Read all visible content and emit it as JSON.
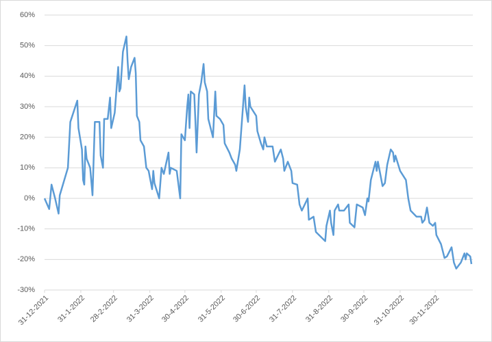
{
  "chart_data": {
    "type": "line",
    "x": [
      "31-12-2021",
      "4-1-2022",
      "6-1-2022",
      "9-1-2022",
      "12-1-2022",
      "13-1-2022",
      "20-1-2022",
      "22-1-2022",
      "28-1-2022",
      "29-1-2022",
      "1-2-2022",
      "2-2-2022",
      "3-2-2022",
      "4-2-2022",
      "5-2-2022",
      "8-2-2022",
      "10-2-2022",
      "12-2-2022",
      "16-2-2022",
      "17-2-2022",
      "19-2-2022",
      "20-2-2022",
      "23-2-2022",
      "25-2-2022",
      "26-2-2022",
      "1-3-2022",
      "4-3-2022",
      "5-3-2022",
      "6-3-2022",
      "8-3-2022",
      "11-3-2022",
      "12-3-2022",
      "13-3-2022",
      "15-3-2022",
      "18-3-2022",
      "19-3-2022",
      "20-3-2022",
      "22-3-2022",
      "23-3-2022",
      "26-3-2022",
      "28-3-2022",
      "30-3-2022",
      "2-4-2022",
      "3-4-2022",
      "4-4-2022",
      "8-4-2022",
      "10-4-2022",
      "12-4-2022",
      "16-4-2022",
      "17-4-2022",
      "18-4-2022",
      "23-4-2022",
      "26-4-2022",
      "27-4-2022",
      "30-4-2022",
      "2-5-2022",
      "3-5-2022",
      "4-5-2022",
      "5-5-2022",
      "8-5-2022",
      "9-5-2022",
      "10-5-2022",
      "12-5-2022",
      "14-5-2022",
      "16-5-2022",
      "17-5-2022",
      "19-5-2022",
      "20-5-2022",
      "24-5-2022",
      "26-5-2022",
      "27-5-2022",
      "30-5-2022",
      "2-6-2022",
      "3-6-2022",
      "7-6-2022",
      "9-6-2022",
      "12-6-2022",
      "13-6-2022",
      "16-6-2022",
      "20-6-2022",
      "21-6-2022",
      "23-6-2022",
      "24-6-2022",
      "25-6-2022",
      "30-6-2022",
      "1-7-2022",
      "4-7-2022",
      "6-7-2022",
      "7-7-2022",
      "9-7-2022",
      "14-7-2022",
      "16-7-2022",
      "21-7-2022",
      "23-7-2022",
      "24-7-2022",
      "27-7-2022",
      "30-7-2022",
      "31-7-2022",
      "4-8-2022",
      "6-8-2022",
      "8-8-2022",
      "13-8-2022",
      "14-8-2022",
      "18-8-2022",
      "20-8-2022",
      "28-8-2022",
      "29-8-2022",
      "1-9-2022",
      "2-9-2022",
      "4-9-2022",
      "5-9-2022",
      "8-9-2022",
      "9-9-2022",
      "13-9-2022",
      "17-9-2022",
      "18-9-2022",
      "22-9-2022",
      "24-9-2022",
      "29-9-2022",
      "1-10-2022",
      "3-10-2022",
      "4-10-2022",
      "6-10-2022",
      "10-10-2022",
      "11-10-2022",
      "12-10-2022",
      "16-10-2022",
      "18-10-2022",
      "20-10-2022",
      "23-10-2022",
      "25-10-2022",
      "26-10-2022",
      "27-10-2022",
      "31-10-2022",
      "5-11-2022",
      "7-11-2022",
      "9-11-2022",
      "14-11-2022",
      "18-11-2022",
      "19-11-2022",
      "21-11-2022",
      "23-11-2022",
      "25-11-2022",
      "28-11-2022",
      "30-11-2022",
      "1-12-2022",
      "5-12-2022",
      "8-12-2022",
      "10-12-2022",
      "14-12-2022",
      "16-12-2022",
      "18-12-2022",
      "22-12-2022",
      "25-12-2022",
      "26-12-2022",
      "27-12-2022",
      "30-12-2022",
      "31-12-2022"
    ],
    "series": [
      {
        "color": "#5b9bd5",
        "values": [
          0,
          -3.5,
          4.5,
          0,
          -5,
          1,
          10,
          25,
          32,
          23,
          16,
          6,
          4.5,
          17,
          13,
          10,
          1,
          25,
          25,
          14,
          10,
          26,
          26,
          33,
          23,
          28,
          43,
          35,
          36,
          48,
          53,
          45,
          39,
          43,
          46,
          41,
          27,
          25,
          19,
          17,
          10,
          9,
          3,
          9,
          5,
          0,
          10,
          8,
          15,
          8,
          10,
          9,
          0,
          21,
          19,
          30,
          34,
          23,
          35,
          34,
          25,
          15,
          34,
          38,
          44,
          38,
          35,
          26,
          20,
          35,
          27,
          26,
          24,
          18,
          15,
          13,
          11,
          9,
          16,
          37,
          30,
          25,
          33,
          30,
          27,
          22,
          18,
          16,
          20,
          17,
          17,
          12,
          16,
          13,
          9,
          12,
          9,
          5,
          4.5,
          -2,
          -4,
          0,
          -7,
          -6,
          -11,
          -14,
          -9,
          -4,
          -8,
          -12,
          -4,
          -2,
          -4,
          -4,
          -2,
          -8,
          -9.5,
          -2,
          -3,
          -5.5,
          0,
          -1,
          6,
          12,
          9,
          12,
          4,
          5,
          11,
          16,
          15,
          12,
          14,
          9,
          6,
          0,
          -4,
          -6,
          -6,
          -8,
          -7,
          -3,
          -8,
          -9,
          -8,
          -12,
          -15,
          -19.5,
          -19,
          -16,
          -21,
          -23,
          -21,
          -18,
          -20,
          -18,
          -19,
          -21.5
        ]
      }
    ],
    "xlim": [
      "31-12-2021",
      "31-12-2022"
    ],
    "xticks": [
      "31-12-2021",
      "31-1-2022",
      "28-2-2022",
      "31-3-2022",
      "30-4-2022",
      "31-5-2022",
      "30-6-2022",
      "31-7-2022",
      "31-8-2022",
      "30-9-2022",
      "31-10-2022",
      "30-11-2022"
    ],
    "ylim": [
      -30,
      60
    ],
    "yticks": [
      {
        "value": -30,
        "label": "-30%"
      },
      {
        "value": -20,
        "label": "-20%"
      },
      {
        "value": -10,
        "label": "-10%"
      },
      {
        "value": 0,
        "label": "0%"
      },
      {
        "value": 10,
        "label": "10%"
      },
      {
        "value": 20,
        "label": "20%"
      },
      {
        "value": 30,
        "label": "30%"
      },
      {
        "value": 40,
        "label": "40%"
      },
      {
        "value": 50,
        "label": "50%"
      },
      {
        "value": 60,
        "label": "60%"
      }
    ],
    "grid": true
  }
}
